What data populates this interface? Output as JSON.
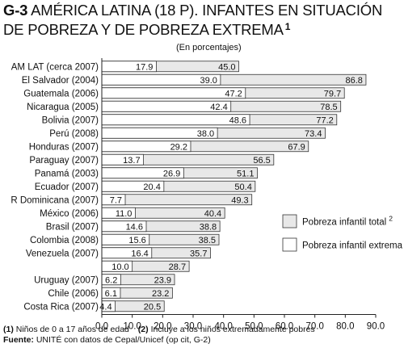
{
  "title": {
    "code": "G-3",
    "text": "AMÉRICA LATINA (18 P). INFANTES EN SITUACIÓN DE POBREZA Y DE POBREZA EXTREMA",
    "note_mark": "1"
  },
  "chart_data": {
    "type": "bar",
    "orientation": "horizontal",
    "subtitle": "(En porcentajes)",
    "categories": [
      "AM LAT (cerca 2007)",
      "El Salvador (2004)",
      "Guatemala (2006)",
      "Nicaragua (2005)",
      "Bolivia (2007)",
      "Perú (2008)",
      "Honduras (2007)",
      "Paraguay (2007)",
      "Panamá (2003)",
      "Ecuador (2007)",
      "R Dominicana (2007)",
      "México (2006)",
      "Brasil (2007)",
      "Colombia (2008)",
      "Venezuela (2007)",
      "",
      "Uruguay (2007)",
      "Chile (2006)",
      "Costa Rica (2007)"
    ],
    "series": [
      {
        "name": "Pobreza infantil total",
        "color": "#e8e8e8",
        "values": [
          45.0,
          86.8,
          79.7,
          78.5,
          77.2,
          73.4,
          67.9,
          56.5,
          51.1,
          50.4,
          49.3,
          40.4,
          38.8,
          38.5,
          35.7,
          28.7,
          23.9,
          23.2,
          20.5
        ],
        "labels": [
          "45.0",
          "86.8",
          "79.7",
          "78.5",
          "77.2",
          "73.4",
          "67.9",
          "56.5",
          "51.1",
          "50.4",
          "49.3",
          "40.4",
          "38.8",
          "38.5",
          "35.7",
          "28.7",
          "23.9",
          "23.2",
          "20.5"
        ]
      },
      {
        "name": "Pobreza infantil extrema",
        "color": "#ffffff",
        "values": [
          17.9,
          39.0,
          47.2,
          42.4,
          48.6,
          38.0,
          29.2,
          13.7,
          26.9,
          20.4,
          7.7,
          11.0,
          14.6,
          15.6,
          16.4,
          10.0,
          6.2,
          6.1,
          4.4
        ],
        "labels": [
          "17.9",
          "39.0",
          "47.2",
          "42.4",
          "48.6",
          "38.0",
          "29.2",
          "13.7",
          "26.9",
          "20.4",
          "7.7",
          "11.0",
          "14.6",
          "15.6",
          "16.4",
          "10.0",
          "6.2",
          "6.1",
          "4.4"
        ]
      }
    ],
    "xlim": [
      0,
      90
    ],
    "xticks": [
      "0.0",
      "10.0",
      "20.0",
      "30.0",
      "40.0",
      "50.0",
      "60.0",
      "70.0",
      "80.0",
      "90.0"
    ],
    "legend": [
      {
        "label": "Pobreza infantil total",
        "note_mark": "2",
        "color": "#e8e8e8"
      },
      {
        "label": "Pobreza infantil extrema",
        "note_mark": "",
        "color": "#ffffff"
      }
    ],
    "legend_position": "right"
  },
  "footnotes": {
    "note1_num": "(1)",
    "note1_text": "Niños de 0 a 17 años de edad",
    "note2_num": "(2)",
    "note2_text": "Incluye a los niños extremadamente pobres",
    "source_label": "Fuente:",
    "source_text": "UNITÉ con datos de Cepal/Unicef  (op cit, G-2)"
  }
}
